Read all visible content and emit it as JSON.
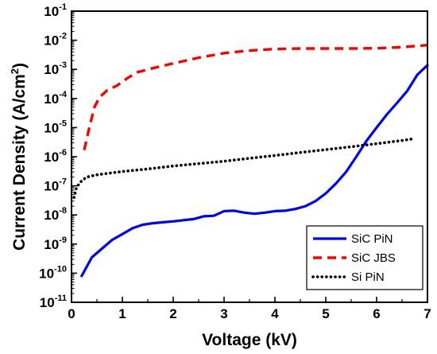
{
  "chart_data": {
    "type": "line",
    "xlabel": "Voltage (kV)",
    "ylabel_main": "Current Density (A/cm",
    "ylabel_sup": "2",
    "ylabel_end": ")",
    "xlim": [
      0,
      7
    ],
    "ylim": [
      1e-11,
      0.1
    ],
    "yscale": "log",
    "grid": false,
    "legend_position": "bottom-right",
    "x_ticks": [
      {
        "label": "0",
        "value": 0
      },
      {
        "label": "1",
        "value": 1
      },
      {
        "label": "2",
        "value": 2
      },
      {
        "label": "3",
        "value": 3
      },
      {
        "label": "4",
        "value": 4
      },
      {
        "label": "5",
        "value": 5
      },
      {
        "label": "6",
        "value": 6
      },
      {
        "label": "7",
        "value": 7
      }
    ],
    "y_ticks": [
      {
        "base": "10",
        "exp": "-11",
        "value": 1e-11
      },
      {
        "base": "10",
        "exp": "-10",
        "value": 1e-10
      },
      {
        "base": "10",
        "exp": "-9",
        "value": 1e-09
      },
      {
        "base": "10",
        "exp": "-8",
        "value": 1e-08
      },
      {
        "base": "10",
        "exp": "-7",
        "value": 1e-07
      },
      {
        "base": "10",
        "exp": "-6",
        "value": 1e-06
      },
      {
        "base": "10",
        "exp": "-5",
        "value": 1e-05
      },
      {
        "base": "10",
        "exp": "-4",
        "value": 0.0001
      },
      {
        "base": "10",
        "exp": "-3",
        "value": 0.001
      },
      {
        "base": "10",
        "exp": "-2",
        "value": 0.01
      },
      {
        "base": "10",
        "exp": "-1",
        "value": 0.1
      }
    ],
    "series": [
      {
        "name": "SiC PiN",
        "color": "#0000ff",
        "style": "solid",
        "points": [
          [
            0.2,
            8e-11
          ],
          [
            0.4,
            3.5e-10
          ],
          [
            0.6,
            7e-10
          ],
          [
            0.8,
            1.4e-09
          ],
          [
            1.0,
            2.2e-09
          ],
          [
            1.2,
            3.5e-09
          ],
          [
            1.4,
            4.6e-09
          ],
          [
            1.6,
            5.2e-09
          ],
          [
            1.8,
            5.6e-09
          ],
          [
            2.0,
            6e-09
          ],
          [
            2.2,
            6.6e-09
          ],
          [
            2.4,
            7.2e-09
          ],
          [
            2.6,
            9e-09
          ],
          [
            2.8,
            9.4e-09
          ],
          [
            3.0,
            1.35e-08
          ],
          [
            3.2,
            1.4e-08
          ],
          [
            3.4,
            1.2e-08
          ],
          [
            3.6,
            1.1e-08
          ],
          [
            3.8,
            1.2e-08
          ],
          [
            4.0,
            1.35e-08
          ],
          [
            4.2,
            1.4e-08
          ],
          [
            4.4,
            1.6e-08
          ],
          [
            4.6,
            2e-08
          ],
          [
            4.8,
            3e-08
          ],
          [
            5.0,
            5.5e-08
          ],
          [
            5.2,
            1.2e-07
          ],
          [
            5.4,
            3e-07
          ],
          [
            5.6,
            1e-06
          ],
          [
            5.8,
            3.5e-06
          ],
          [
            6.0,
            1e-05
          ],
          [
            6.2,
            2.8e-05
          ],
          [
            6.4,
            7e-05
          ],
          [
            6.6,
            0.00018
          ],
          [
            6.8,
            0.00065
          ],
          [
            7.0,
            0.0014
          ]
        ]
      },
      {
        "name": "SiC JBS",
        "color": "#ff0000",
        "style": "dashed",
        "points": [
          [
            0.25,
            1.7e-06
          ],
          [
            0.35,
            1e-05
          ],
          [
            0.45,
            5e-05
          ],
          [
            0.55,
            0.00011
          ],
          [
            0.7,
            0.00019
          ],
          [
            0.9,
            0.00028
          ],
          [
            1.1,
            0.0005
          ],
          [
            1.3,
            0.0008
          ],
          [
            1.6,
            0.0011
          ],
          [
            2.0,
            0.0016
          ],
          [
            2.5,
            0.0025
          ],
          [
            3.0,
            0.0036
          ],
          [
            3.5,
            0.0044
          ],
          [
            4.0,
            0.005
          ],
          [
            4.5,
            0.0052
          ],
          [
            5.0,
            0.0052
          ],
          [
            5.5,
            0.0052
          ],
          [
            6.0,
            0.0053
          ],
          [
            6.5,
            0.0058
          ],
          [
            7.0,
            0.0068
          ]
        ]
      },
      {
        "name": "Si PiN",
        "color": "#000000",
        "style": "dotted",
        "points": [
          [
            0.05,
            4e-08
          ],
          [
            0.1,
            9e-08
          ],
          [
            0.2,
            1.5e-07
          ],
          [
            0.3,
            2e-07
          ],
          [
            0.5,
            2.4e-07
          ],
          [
            0.8,
            2.8e-07
          ],
          [
            1.0,
            3.1e-07
          ],
          [
            1.5,
            3.8e-07
          ],
          [
            2.0,
            4.8e-07
          ],
          [
            2.5,
            5.8e-07
          ],
          [
            3.0,
            7e-07
          ],
          [
            3.5,
            8.8e-07
          ],
          [
            4.0,
            1.1e-06
          ],
          [
            4.5,
            1.4e-06
          ],
          [
            5.0,
            1.75e-06
          ],
          [
            5.5,
            2.2e-06
          ],
          [
            6.0,
            2.8e-06
          ],
          [
            6.5,
            3.6e-06
          ],
          [
            6.75,
            4.2e-06
          ]
        ]
      }
    ]
  }
}
